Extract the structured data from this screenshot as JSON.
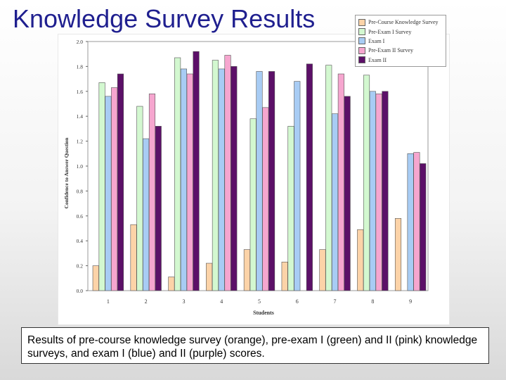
{
  "slide": {
    "title": "Knowledge Survey Results",
    "caption": "Results of pre-course knowledge survey (orange), pre-exam I (green) and II (pink) knowledge surveys, and exam I (blue) and II (purple) scores."
  },
  "chart_data": {
    "type": "bar",
    "title": "",
    "xlabel": "Students",
    "ylabel": "Confidence to Answer Question",
    "ylim": [
      0,
      2.0
    ],
    "yticks": [
      "0.0",
      "0.2",
      "0.4",
      "0.6",
      "0.8",
      "1.0",
      "1.2",
      "1.4",
      "1.6",
      "1.8",
      "2.0"
    ],
    "categories": [
      "1",
      "2",
      "3",
      "4",
      "5",
      "6",
      "7",
      "8",
      "9"
    ],
    "grid": false,
    "legend_position": "top-right",
    "series": [
      {
        "name": "Pre-Course Knowledge Survey",
        "color": "#fcd3a8",
        "values": [
          0.2,
          0.53,
          0.11,
          0.22,
          0.33,
          0.23,
          0.33,
          0.49,
          0.58
        ]
      },
      {
        "name": "Pre-Exam I Survey",
        "color": "#d3f8d0",
        "values": [
          1.67,
          1.48,
          1.87,
          1.85,
          1.38,
          1.32,
          1.81,
          1.73,
          null
        ]
      },
      {
        "name": "Exam I",
        "color": "#a8ccf4",
        "values": [
          1.56,
          1.22,
          1.78,
          1.78,
          1.76,
          1.68,
          1.42,
          1.6,
          1.1
        ]
      },
      {
        "name": "Pre-Exam II Survey",
        "color": "#f6a6cf",
        "values": [
          1.63,
          1.58,
          1.74,
          1.89,
          1.47,
          null,
          1.74,
          1.58,
          1.11
        ]
      },
      {
        "name": "Exam II",
        "color": "#5c1068",
        "values": [
          1.74,
          1.32,
          1.92,
          1.8,
          1.76,
          1.82,
          1.56,
          1.6,
          1.02
        ]
      }
    ]
  }
}
